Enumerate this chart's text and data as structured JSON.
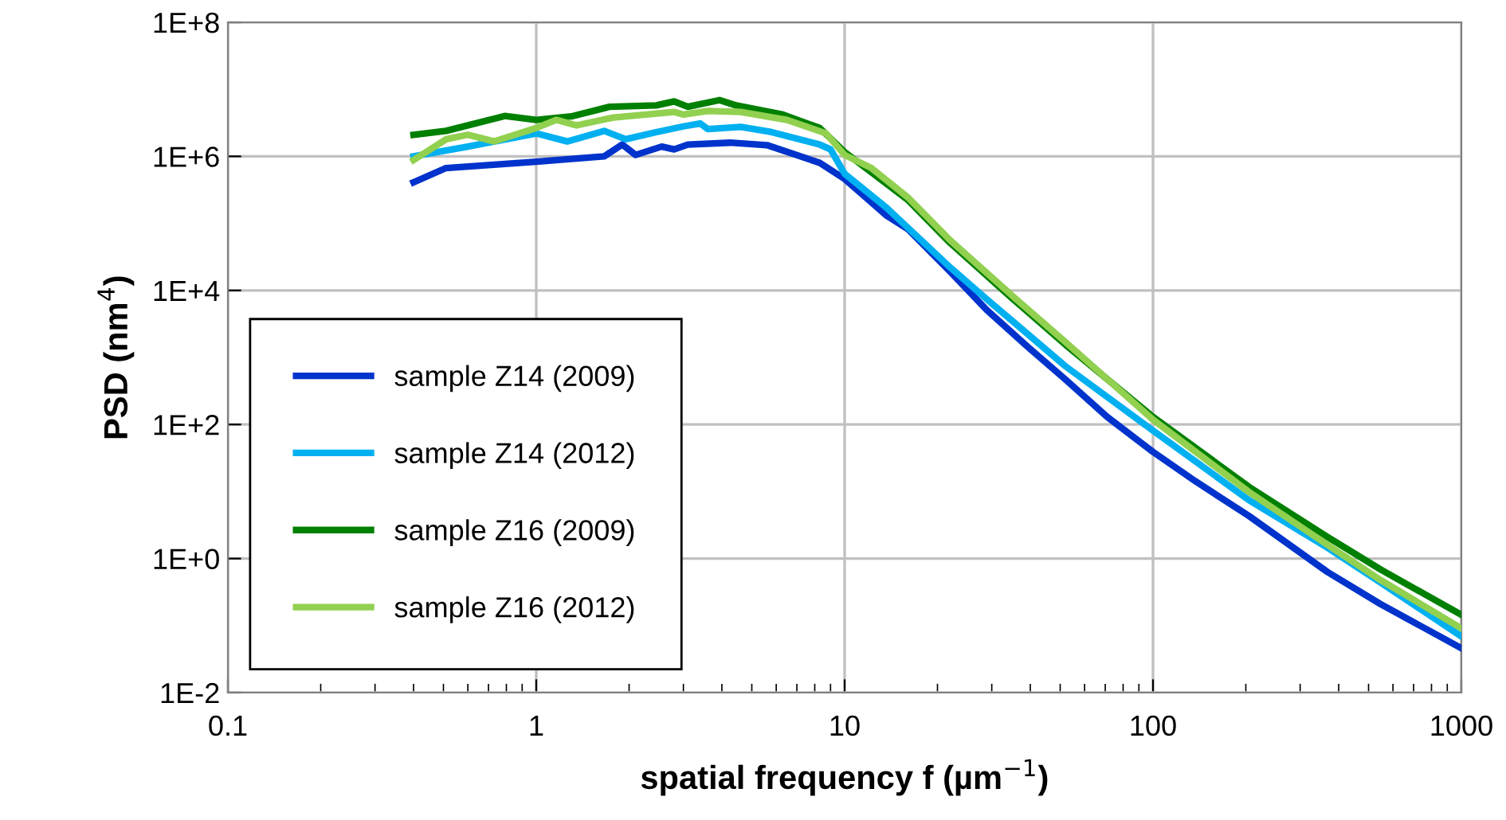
{
  "chart_data": {
    "type": "line",
    "xlabel": "spatial frequency f (µm$^{−1}$)",
    "ylabel": "PSD (nm$^{4}$)",
    "log": "xy",
    "grid": true,
    "legend": "bottom left",
    "marker": "none",
    "line_style": "solid",
    "xlim": [
      0.1,
      1000
    ],
    "xticks": [
      0.1,
      1,
      10,
      100,
      1000
    ],
    "ylim": [
      0.01,
      100000000
    ],
    "yticks": [
      {
        "value": 0.01,
        "label": "1E-2"
      },
      {
        "value": 1,
        "label": "1E+0"
      },
      {
        "value": 100,
        "label": "1E+2"
      },
      {
        "value": 10000,
        "label": "1E+4"
      },
      {
        "value": 1000000,
        "label": "1E+6"
      },
      {
        "value": 100000000,
        "label": "1E+8"
      }
    ],
    "series": [
      {
        "name": "sample Z14 (2009)",
        "color": "#0033cc",
        "x": [
          0.4,
          0.51,
          1.0,
          1.66,
          1.9,
          2.1,
          2.55,
          2.8,
          3.1,
          4.25,
          5.6,
          8.3,
          10.0,
          13.7,
          16.1,
          22,
          28.9,
          39.5,
          52,
          71,
          100,
          138,
          205,
          368,
          546,
          1000
        ],
        "values": [
          410000,
          670000,
          830000,
          1000000,
          1500000,
          1050000,
          1400000,
          1270000,
          1500000,
          1600000,
          1470000,
          800000,
          460000,
          130000,
          81000,
          19000,
          5100,
          1400,
          470,
          130,
          39,
          14,
          4.3,
          0.63,
          0.21,
          0.046
        ]
      },
      {
        "name": "sample Z14 (2012)",
        "color": "#00b0f0",
        "x": [
          0.4,
          0.6,
          1.0,
          1.26,
          1.66,
          1.95,
          2.45,
          3.0,
          3.4,
          3.6,
          4.6,
          5.8,
          8.3,
          9.0,
          10.0,
          13.7,
          22,
          28.9,
          52,
          100,
          205,
          368,
          546,
          1000
        ],
        "values": [
          1000000,
          1400000,
          2200000,
          1670000,
          2400000,
          1800000,
          2300000,
          2800000,
          3100000,
          2550000,
          2750000,
          2300000,
          1500000,
          1270000,
          550000,
          170000,
          22000,
          7400,
          740,
          81,
          7.4,
          1.45,
          0.44,
          0.069
        ]
      },
      {
        "name": "sample Z16 (2009)",
        "color": "#008000",
        "x": [
          0.4,
          0.51,
          0.79,
          1.0,
          1.3,
          1.73,
          2.45,
          2.8,
          3.1,
          3.93,
          4.45,
          6.3,
          8.3,
          10.0,
          11.7,
          16.1,
          22,
          35.2,
          52,
          100,
          205,
          368,
          546,
          1000
        ],
        "values": [
          2100000,
          2400000,
          4000000,
          3500000,
          3950000,
          5500000,
          5750000,
          6600000,
          5500000,
          6900000,
          5750000,
          4200000,
          2650000,
          1160000,
          670000,
          220000,
          51000,
          7400,
          1550,
          130,
          11.7,
          2.1,
          0.69,
          0.145
        ]
      },
      {
        "name": "sample Z16 (2012)",
        "color": "#92d050",
        "x": [
          0.4,
          0.51,
          0.6,
          0.73,
          1.0,
          1.16,
          1.35,
          1.78,
          2.8,
          3.0,
          3.6,
          4.6,
          6.5,
          8.7,
          10.0,
          12.2,
          16.1,
          22,
          35.2,
          52,
          100,
          205,
          368,
          546,
          1000
        ],
        "values": [
          880000,
          1800000,
          2100000,
          1670000,
          2650000,
          3500000,
          2900000,
          3800000,
          4600000,
          4200000,
          4750000,
          4600000,
          3500000,
          2200000,
          1050000,
          670000,
          240000,
          56000,
          8100,
          1700,
          118,
          9.8,
          1.6,
          0.48,
          0.091
        ]
      }
    ]
  }
}
